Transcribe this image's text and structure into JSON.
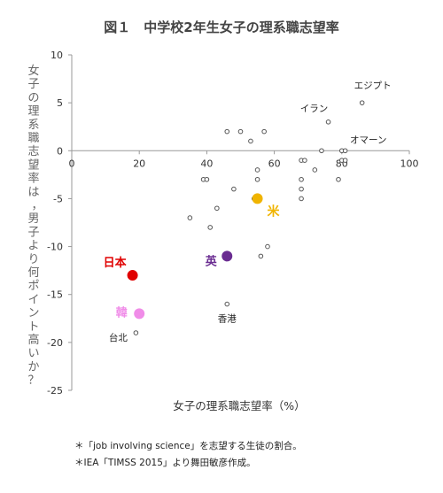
{
  "chart_data": {
    "type": "scatter",
    "title": "図１　中学校2年生女子の理系職志望率",
    "xlabel": "女子の理系職志望率（%）",
    "ylabel": "女子の理系職志望率は，男子より何ポイント高いか？",
    "xlim": [
      0,
      100
    ],
    "ylim": [
      -25,
      10
    ],
    "x_ticks": [
      0,
      20,
      40,
      60,
      80,
      100
    ],
    "y_ticks": [
      -25,
      -20,
      -15,
      -10,
      -5,
      0,
      5,
      10
    ],
    "grid": false,
    "legend": "none",
    "colors": {
      "default": "#555555",
      "japan": "#e00000",
      "uk": "#6a2c91",
      "us": "#f0b400",
      "korea": "#f08ce8"
    },
    "points": [
      {
        "x": 86,
        "y": 5
      },
      {
        "x": 76,
        "y": 3
      },
      {
        "x": 80,
        "y": 0
      },
      {
        "x": 81,
        "y": 0
      },
      {
        "x": 74,
        "y": 0
      },
      {
        "x": 46,
        "y": 2
      },
      {
        "x": 50,
        "y": 2
      },
      {
        "x": 57,
        "y": 2
      },
      {
        "x": 53,
        "y": 1
      },
      {
        "x": 68,
        "y": -1
      },
      {
        "x": 69,
        "y": -1
      },
      {
        "x": 80,
        "y": -1
      },
      {
        "x": 81,
        "y": -1
      },
      {
        "x": 55,
        "y": -2
      },
      {
        "x": 72,
        "y": -2
      },
      {
        "x": 39,
        "y": -3
      },
      {
        "x": 40,
        "y": -3
      },
      {
        "x": 55,
        "y": -3
      },
      {
        "x": 68,
        "y": -3
      },
      {
        "x": 79,
        "y": -3
      },
      {
        "x": 48,
        "y": -4
      },
      {
        "x": 68,
        "y": -4
      },
      {
        "x": 54,
        "y": -5
      },
      {
        "x": 68,
        "y": -5
      },
      {
        "x": 43,
        "y": -6
      },
      {
        "x": 35,
        "y": -7
      },
      {
        "x": 41,
        "y": -8
      },
      {
        "x": 58,
        "y": -10
      },
      {
        "x": 56,
        "y": -11
      },
      {
        "x": 46,
        "y": -16
      },
      {
        "x": 19,
        "y": -19
      }
    ],
    "highlighted": [
      {
        "label": "日本",
        "x": 18,
        "y": -13,
        "color": "#e00000"
      },
      {
        "label": "英",
        "x": 46,
        "y": -11,
        "color": "#6a2c91"
      },
      {
        "label": "米",
        "x": 55,
        "y": -5,
        "color": "#f0b400"
      },
      {
        "label": "韓",
        "x": 20,
        "y": -17,
        "color": "#f08ce8"
      }
    ],
    "annotations": [
      {
        "text": "エジプト",
        "x": 86,
        "y": 5
      },
      {
        "text": "イラン",
        "x": 76,
        "y": 3
      },
      {
        "text": "オマーン",
        "x": 80,
        "y": 0
      },
      {
        "text": "香港",
        "x": 46,
        "y": -16
      },
      {
        "text": "台北",
        "x": 19,
        "y": -19
      }
    ]
  },
  "notes": [
    "＊「job involving science」を志望する生徒の割合。",
    "＊IEA「TIMSS 2015」より舞田敏彦作成。"
  ]
}
